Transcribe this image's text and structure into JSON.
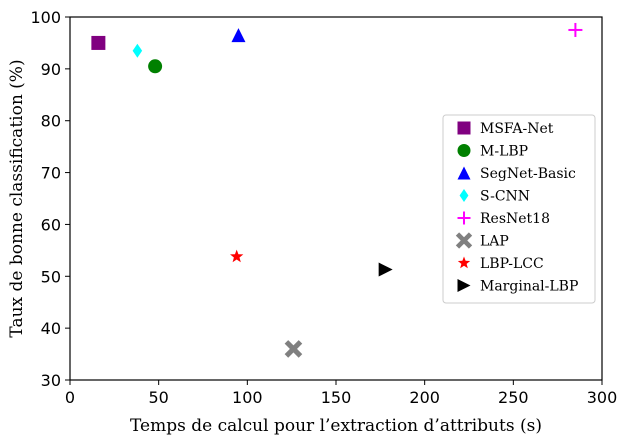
{
  "chart_data": {
    "type": "scatter",
    "xlabel": "Temps de calcul pour l’extraction d’attributs (s)",
    "ylabel": "Taux de bonne classification (%)",
    "xlim": [
      0,
      300
    ],
    "ylim": [
      30,
      100
    ],
    "xticks": [
      0,
      50,
      100,
      150,
      200,
      250,
      300
    ],
    "yticks": [
      30,
      40,
      50,
      60,
      70,
      80,
      90,
      100
    ],
    "grid": false,
    "legend_position": "right",
    "series": [
      {
        "name": "MSFA-Net",
        "x": 16,
        "y": 95,
        "marker": "square",
        "color": "#800080"
      },
      {
        "name": "M-LBP",
        "x": 48,
        "y": 90.5,
        "marker": "circle",
        "color": "#008000"
      },
      {
        "name": "SegNet-Basic",
        "x": 95,
        "y": 96.5,
        "marker": "triangle-up",
        "color": "#0000ff"
      },
      {
        "name": "S-CNN",
        "x": 38,
        "y": 93.5,
        "marker": "diamond",
        "color": "#00ffff"
      },
      {
        "name": "ResNet18",
        "x": 285,
        "y": 97.5,
        "marker": "plus",
        "color": "#ff00ff"
      },
      {
        "name": "LAP",
        "x": 126,
        "y": 36,
        "marker": "x-filled",
        "color": "#808080"
      },
      {
        "name": "LBP-LCC",
        "x": 94,
        "y": 53.8,
        "marker": "star",
        "color": "#ff0000"
      },
      {
        "name": "Marginal-LBP",
        "x": 178,
        "y": 51.3,
        "marker": "triangle-right",
        "color": "#000000"
      }
    ]
  }
}
